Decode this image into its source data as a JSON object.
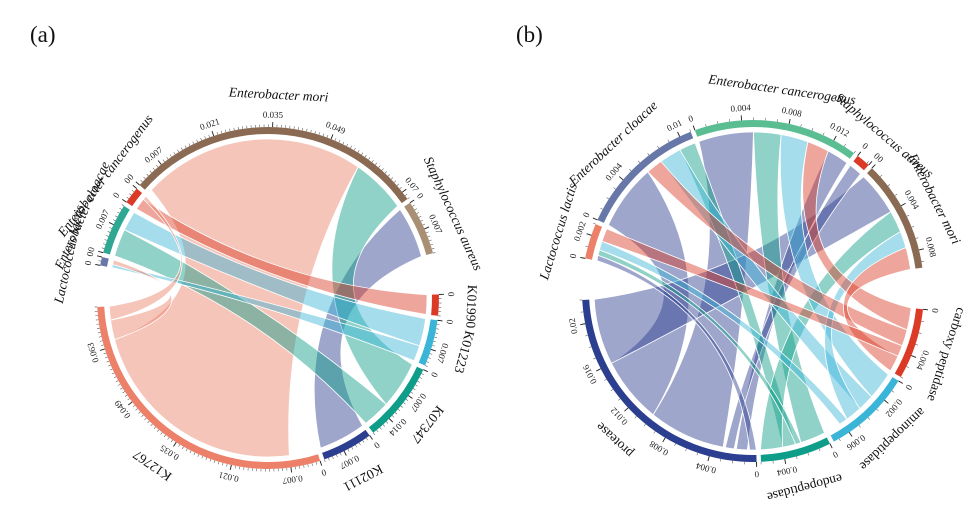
{
  "figure_title": "",
  "chart_data": [
    {
      "type": "chord",
      "panel_label": "(a)",
      "description_groups": [
        "species",
        "kegg_ortholog"
      ],
      "minor_tick_step": 0.001,
      "sectors": [
        {
          "name": "Lactococcus lactis",
          "group": "species",
          "italic": true,
          "color": "#6777a8",
          "size": 0.002,
          "ticks": [
            {
              "v": 0,
              "label": "0"
            },
            {
              "v": 0.002,
              "label": "0"
            }
          ]
        },
        {
          "name": "Enterobacter cloacae",
          "group": "species",
          "italic": true,
          "color": "#2fa893",
          "size": 0.012,
          "ticks": [
            {
              "v": 0,
              "label": "0"
            },
            {
              "v": 0.007,
              "label": "0.007"
            }
          ]
        },
        {
          "name": "Enterobacter cancerogenus",
          "group": "species",
          "italic": true,
          "color": "#db3a26",
          "size": 0.004,
          "ticks": [
            {
              "v": 0,
              "label": "0"
            },
            {
              "v": 0.004,
              "label": "0"
            }
          ]
        },
        {
          "name": "Enterobacter mori",
          "group": "species",
          "italic": true,
          "color": "#8a6a52",
          "size": 0.072,
          "ticks": [
            {
              "v": 0,
              "label": "0"
            },
            {
              "v": 0.007,
              "label": "0.007"
            },
            {
              "v": 0.021,
              "label": "0.021"
            },
            {
              "v": 0.035,
              "label": "0.035"
            },
            {
              "v": 0.049,
              "label": "0.049"
            },
            {
              "v": 0.07,
              "label": "0.07"
            }
          ]
        },
        {
          "name": "Staphylococcus aureus",
          "group": "species",
          "italic": true,
          "color": "#a98f74",
          "size": 0.013,
          "ticks": [
            {
              "v": 0,
              "label": "0"
            },
            {
              "v": 0.007,
              "label": "0.007"
            }
          ]
        },
        {
          "name": "K01990",
          "group": "kegg",
          "italic": false,
          "color": "#db3a26",
          "size": 0.005,
          "ticks": [
            {
              "v": 0,
              "label": "0"
            }
          ]
        },
        {
          "name": "K01223",
          "group": "kegg",
          "italic": false,
          "color": "#3ab5d8",
          "size": 0.011,
          "ticks": [
            {
              "v": 0,
              "label": "0"
            },
            {
              "v": 0.007,
              "label": "0.007"
            }
          ]
        },
        {
          "name": "K07347",
          "group": "kegg",
          "italic": false,
          "color": "#0d9d88",
          "size": 0.019,
          "ticks": [
            {
              "v": 0,
              "label": "0"
            },
            {
              "v": 0.007,
              "label": "0.007"
            },
            {
              "v": 0.014,
              "label": "0.014"
            }
          ]
        },
        {
          "name": "K02111",
          "group": "kegg",
          "italic": false,
          "color": "#2c3e8f",
          "size": 0.012,
          "ticks": [
            {
              "v": 0,
              "label": "0"
            },
            {
              "v": 0.007,
              "label": "0.007"
            }
          ]
        },
        {
          "name": "K12767",
          "group": "kegg",
          "italic": false,
          "color": "#ec8068",
          "size": 0.073,
          "ticks": [
            {
              "v": 0,
              "label": "0"
            },
            {
              "v": 0.007,
              "label": "0.007"
            },
            {
              "v": 0.021,
              "label": "0.021"
            },
            {
              "v": 0.035,
              "label": "0.035"
            },
            {
              "v": 0.049,
              "label": "0.049"
            },
            {
              "v": 0.063,
              "label": "0.063"
            }
          ]
        }
      ],
      "ribbons": [
        {
          "from": [
            3,
            0.001,
            0.058
          ],
          "to": [
            9,
            0.007,
            0.0645
          ],
          "color": "#ec8068"
        },
        {
          "from": [
            4,
            0.0,
            0.013
          ],
          "to": [
            8,
            0.0,
            0.012
          ],
          "color": "#2c3e8f"
        },
        {
          "from": [
            3,
            0.058,
            0.072
          ],
          "to": [
            7,
            0.0,
            0.012
          ],
          "color": "#0d9d88"
        },
        {
          "from": [
            1,
            0.0,
            0.007
          ],
          "to": [
            7,
            0.012,
            0.019
          ],
          "color": "#0d9d88"
        },
        {
          "from": [
            1,
            0.007,
            0.012
          ],
          "to": [
            6,
            0.0,
            0.007
          ],
          "color": "#3ab5d8"
        },
        {
          "from": [
            2,
            0.0,
            0.003
          ],
          "to": [
            5,
            0.0,
            0.005
          ],
          "color": "#db3a26"
        },
        {
          "from": [
            0,
            0.0,
            0.0008
          ],
          "to": [
            6,
            0.007,
            0.011
          ],
          "color": "#3ab5d8"
        },
        {
          "from": [
            0,
            0.0008,
            0.002
          ],
          "to": [
            9,
            0.0645,
            0.0695
          ],
          "color": "#ec8068"
        },
        {
          "from": [
            2,
            0.003,
            0.004
          ],
          "to": [
            9,
            0.0695,
            0.073
          ],
          "color": "#ec8068"
        }
      ]
    },
    {
      "type": "chord",
      "panel_label": "(b)",
      "description_groups": [
        "species",
        "enzyme_function"
      ],
      "minor_tick_step": 0.001,
      "sectors": [
        {
          "name": "Lactococcus lactis",
          "group": "species",
          "italic": true,
          "color": "#ec8068",
          "size": 0.003,
          "ticks": [
            {
              "v": 0,
              "label": "0"
            },
            {
              "v": 0.002,
              "label": "0.002"
            }
          ]
        },
        {
          "name": "Enterobacter cloacae",
          "group": "species",
          "italic": true,
          "color": "#6777a8",
          "size": 0.011,
          "ticks": [
            {
              "v": 0,
              "label": "0"
            },
            {
              "v": 0.004,
              "label": "0.004"
            },
            {
              "v": 0.01,
              "label": "0.01"
            }
          ]
        },
        {
          "name": "Enterobacter cancerogenus",
          "group": "species",
          "italic": true,
          "color": "#5abe92",
          "size": 0.014,
          "ticks": [
            {
              "v": 0,
              "label": "0"
            },
            {
              "v": 0.004,
              "label": "0.004"
            },
            {
              "v": 0.008,
              "label": "0.008"
            },
            {
              "v": 0.012,
              "label": "0.012"
            }
          ]
        },
        {
          "name": "Staphylococcus aureus",
          "group": "species",
          "italic": true,
          "color": "#db3a26",
          "size": 0.0012,
          "ticks": [
            {
              "v": 0,
              "label": "0"
            },
            {
              "v": 0.0012,
              "label": "0"
            }
          ]
        },
        {
          "name": "Enterobacter mori",
          "group": "species",
          "italic": true,
          "color": "#8a6a52",
          "size": 0.0095,
          "ticks": [
            {
              "v": 0,
              "label": "0"
            },
            {
              "v": 0.004,
              "label": "0.004"
            },
            {
              "v": 0.008,
              "label": "0.008"
            }
          ]
        },
        {
          "name": "carboxy peptidase",
          "group": "function",
          "italic": false,
          "color": "#db3a26",
          "size": 0.006,
          "ticks": [
            {
              "v": 0,
              "label": "0"
            },
            {
              "v": 0.004,
              "label": "0.004"
            }
          ]
        },
        {
          "name": "aminopeptidase",
          "group": "function",
          "italic": false,
          "color": "#3ab5d8",
          "size": 0.0075,
          "ticks": [
            {
              "v": 0,
              "label": "0"
            },
            {
              "v": 0.002,
              "label": "0.002"
            },
            {
              "v": 0.006,
              "label": "0.006"
            }
          ]
        },
        {
          "name": "endopeptidase",
          "group": "function",
          "italic": false,
          "color": "#0d9d88",
          "size": 0.006,
          "ticks": [
            {
              "v": 0,
              "label": "0"
            },
            {
              "v": 0.004,
              "label": "0.004"
            }
          ]
        },
        {
          "name": "protease",
          "group": "function",
          "italic": false,
          "color": "#2c3e8f",
          "size": 0.022,
          "ticks": [
            {
              "v": 0,
              "label": "0"
            },
            {
              "v": 0.004,
              "label": "0.004"
            },
            {
              "v": 0.008,
              "label": "0.008"
            },
            {
              "v": 0.012,
              "label": "0.012"
            },
            {
              "v": 0.016,
              "label": "0.016"
            },
            {
              "v": 0.02,
              "label": "0.02"
            }
          ]
        }
      ],
      "ribbons": [
        {
          "from": [
            8,
            0.01,
            0.016
          ],
          "to": [
            1,
            0.0,
            0.006
          ],
          "color": "#2c3e8f"
        },
        {
          "from": [
            8,
            0.003,
            0.01
          ],
          "to": [
            2,
            0.0,
            0.005
          ],
          "color": "#2c3e8f"
        },
        {
          "from": [
            8,
            0.016,
            0.022
          ],
          "to": [
            4,
            0.0,
            0.004
          ],
          "color": "#2c3e8f"
        },
        {
          "from": [
            8,
            0.0008,
            0.0018
          ],
          "to": [
            2,
            0.012,
            0.014
          ],
          "color": "#2c3e8f"
        },
        {
          "from": [
            8,
            0.002,
            0.0028
          ],
          "to": [
            3,
            0.0,
            0.0012
          ],
          "color": "#2c3e8f"
        },
        {
          "from": [
            8,
            0.0,
            0.0006
          ],
          "to": [
            0,
            0.0,
            0.0005
          ],
          "color": "#2c3e8f"
        },
        {
          "from": [
            7,
            0.0,
            0.0023
          ],
          "to": [
            2,
            0.005,
            0.0075
          ],
          "color": "#0d9d88"
        },
        {
          "from": [
            7,
            0.0028,
            0.004
          ],
          "to": [
            1,
            0.0095,
            0.011
          ],
          "color": "#0d9d88"
        },
        {
          "from": [
            7,
            0.004,
            0.006
          ],
          "to": [
            4,
            0.004,
            0.006
          ],
          "color": "#0d9d88"
        },
        {
          "from": [
            7,
            0.0023,
            0.0028
          ],
          "to": [
            0,
            0.0005,
            0.001
          ],
          "color": "#0d9d88"
        },
        {
          "from": [
            6,
            0.0,
            0.0025
          ],
          "to": [
            2,
            0.0075,
            0.01
          ],
          "color": "#3ab5d8"
        },
        {
          "from": [
            6,
            0.0025,
            0.004
          ],
          "to": [
            1,
            0.0075,
            0.0095
          ],
          "color": "#3ab5d8"
        },
        {
          "from": [
            6,
            0.004,
            0.0055
          ],
          "to": [
            4,
            0.006,
            0.0075
          ],
          "color": "#3ab5d8"
        },
        {
          "from": [
            6,
            0.0055,
            0.0063
          ],
          "to": [
            0,
            0.001,
            0.0018
          ],
          "color": "#3ab5d8"
        },
        {
          "from": [
            5,
            0.0,
            0.002
          ],
          "to": [
            2,
            0.01,
            0.012
          ],
          "color": "#db3a26"
        },
        {
          "from": [
            5,
            0.002,
            0.0035
          ],
          "to": [
            1,
            0.006,
            0.0075
          ],
          "color": "#db3a26"
        },
        {
          "from": [
            5,
            0.0045,
            0.006
          ],
          "to": [
            4,
            0.0075,
            0.0095
          ],
          "color": "#db3a26"
        },
        {
          "from": [
            5,
            0.0035,
            0.0045
          ],
          "to": [
            0,
            0.0018,
            0.003
          ],
          "color": "#db3a26"
        }
      ]
    }
  ]
}
